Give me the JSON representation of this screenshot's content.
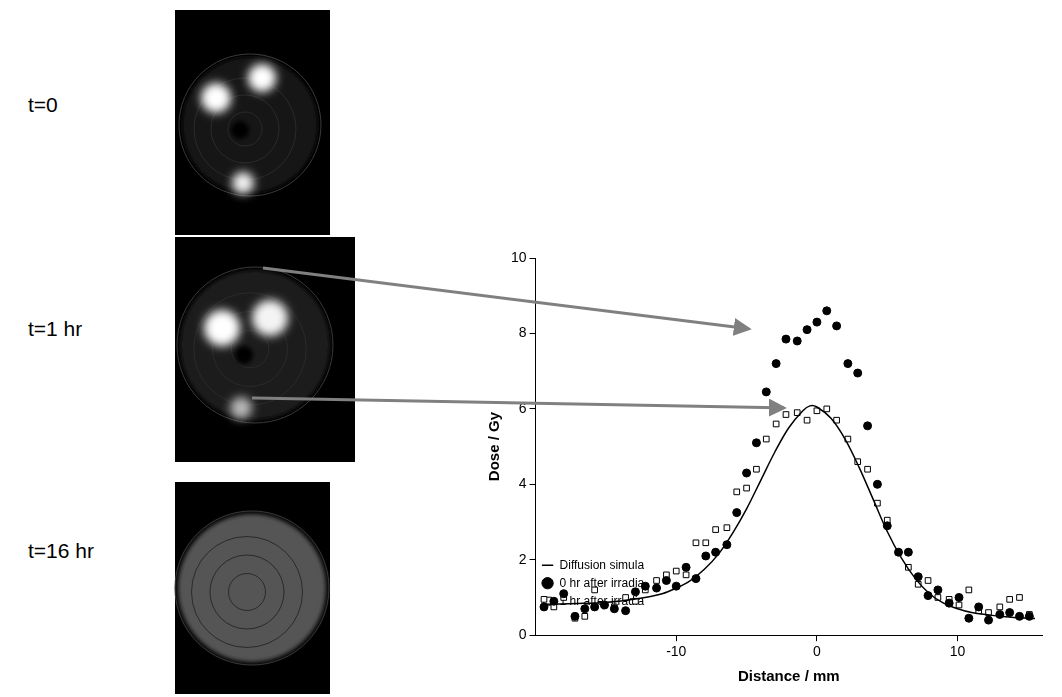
{
  "chart_data": {
    "type": "scatter",
    "x_label": "Distance / mm",
    "y_label": "Dose / Gy",
    "xlim": [
      -20,
      16
    ],
    "xticks": [
      -10,
      0,
      10
    ],
    "ylim": [
      0,
      10
    ],
    "yticks": [
      0,
      2,
      4,
      6,
      8,
      10
    ],
    "grid": false,
    "legend": "upper right",
    "series": [
      {
        "name": "0 hr after irradia",
        "type": "scatter",
        "marker": "circle",
        "color": "#000000",
        "x": [
          -19.4,
          -18.7,
          -18.0,
          -17.2,
          -16.5,
          -15.8,
          -15.1,
          -14.4,
          -13.6,
          -12.9,
          -12.2,
          -11.4,
          -10.7,
          -10.0,
          -9.3,
          -8.6,
          -7.9,
          -7.2,
          -6.4,
          -5.7,
          -5.0,
          -4.3,
          -3.6,
          -2.9,
          -2.2,
          -1.4,
          -0.7,
          0.0,
          0.7,
          1.4,
          2.2,
          2.9,
          3.6,
          4.3,
          5.0,
          5.8,
          6.5,
          7.2,
          7.9,
          8.6,
          9.4,
          10.1,
          10.8,
          11.5,
          12.2,
          13.0,
          13.7,
          14.4,
          15.1
        ],
        "values": [
          0.75,
          0.9,
          1.1,
          0.5,
          0.7,
          0.75,
          0.8,
          0.7,
          0.65,
          1.15,
          1.3,
          1.25,
          1.45,
          1.3,
          1.8,
          1.5,
          2.1,
          2.2,
          2.4,
          3.25,
          4.3,
          5.1,
          6.45,
          7.2,
          7.85,
          7.8,
          8.1,
          8.3,
          8.6,
          8.2,
          7.2,
          6.95,
          5.55,
          4.0,
          2.9,
          2.2,
          2.2,
          1.55,
          1.05,
          1.2,
          0.85,
          1.0,
          0.45,
          0.75,
          0.4,
          0.55,
          0.6,
          0.5,
          0.5
        ]
      },
      {
        "name": "1 hr after irradia",
        "type": "scatter",
        "marker": "open_square",
        "color": "#000000",
        "x": [
          -19.4,
          -18.7,
          -18.0,
          -17.2,
          -16.5,
          -15.8,
          -15.1,
          -14.4,
          -13.6,
          -12.9,
          -12.2,
          -11.4,
          -10.7,
          -10.0,
          -9.3,
          -8.6,
          -7.9,
          -7.2,
          -6.4,
          -5.7,
          -5.0,
          -4.3,
          -3.6,
          -2.9,
          -2.2,
          -1.4,
          -0.7,
          0.0,
          0.7,
          1.4,
          2.2,
          2.9,
          3.6,
          4.3,
          5.0,
          5.8,
          6.5,
          7.2,
          7.9,
          8.6,
          9.4,
          10.1,
          10.8,
          11.5,
          12.2,
          13.0,
          13.7,
          14.4,
          15.1
        ],
        "values": [
          0.95,
          0.75,
          1.0,
          0.45,
          0.5,
          1.2,
          0.8,
          0.75,
          1.0,
          0.9,
          1.2,
          1.45,
          1.6,
          1.7,
          1.6,
          2.45,
          2.45,
          2.8,
          2.85,
          3.8,
          3.9,
          4.4,
          5.2,
          5.6,
          5.85,
          5.9,
          5.7,
          5.95,
          6.0,
          5.7,
          5.2,
          4.6,
          4.4,
          3.5,
          3.05,
          2.2,
          1.8,
          1.35,
          1.45,
          1.0,
          0.95,
          0.8,
          1.2,
          0.65,
          0.6,
          0.75,
          0.95,
          1.0,
          0.55
        ]
      },
      {
        "name": "Diffusion simula",
        "type": "line",
        "line_style": "solid",
        "color": "#000000",
        "x": [
          -19.5,
          -17,
          -15,
          -13,
          -11,
          -10,
          -9,
          -8,
          -7,
          -6,
          -5,
          -4,
          -3,
          -2,
          -1,
          -0.5,
          0,
          1,
          2,
          3,
          4,
          5,
          6,
          7,
          8,
          9,
          10,
          11,
          12,
          13,
          14,
          15.5
        ],
        "values": [
          0.82,
          0.84,
          0.87,
          0.95,
          1.1,
          1.25,
          1.45,
          1.75,
          2.15,
          2.7,
          3.35,
          4.1,
          4.85,
          5.5,
          5.95,
          6.08,
          6.05,
          5.75,
          5.2,
          4.45,
          3.6,
          2.75,
          2.05,
          1.5,
          1.1,
          0.85,
          0.7,
          0.6,
          0.55,
          0.5,
          0.47,
          0.44
        ]
      }
    ]
  },
  "panels": [
    {
      "label": "t=0"
    },
    {
      "label": "t=1 hr"
    },
    {
      "label": "t=16 hr"
    }
  ]
}
